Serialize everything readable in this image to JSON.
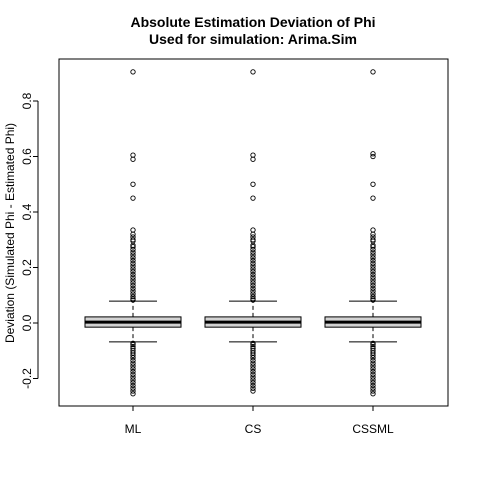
{
  "chart_data": {
    "type": "boxplot",
    "title": "Absolute Estimation Deviation of Phi",
    "subtitle": "Used for simulation: Arima.Sim",
    "xlabel": "",
    "ylabel": "Deviation (Simulated Phi - Estimated Phi)",
    "ylim": [
      -0.3,
      0.95
    ],
    "yticks": [
      -0.2,
      0.0,
      0.2,
      0.4,
      0.6,
      0.8
    ],
    "ytick_labels": [
      "-0.2",
      "0.0",
      "0.2",
      "0.4",
      "0.6",
      "0.8"
    ],
    "grid": false,
    "box_fill": "#d3d3d3",
    "categories": [
      "ML",
      "CS",
      "CSSML"
    ],
    "boxes": [
      {
        "name": "ML",
        "whisker_low": -0.068,
        "q1": -0.015,
        "median": 0.003,
        "q3": 0.022,
        "whisker_high": 0.079,
        "outliers_high": [
          0.905,
          0.605,
          0.59,
          0.5,
          0.45,
          0.335,
          0.32,
          0.31,
          0.3,
          0.295,
          0.28,
          0.275,
          0.265,
          0.255,
          0.245,
          0.235,
          0.225,
          0.215,
          0.205,
          0.195,
          0.185,
          0.175,
          0.165,
          0.155,
          0.145,
          0.135,
          0.125,
          0.115,
          0.105,
          0.095,
          0.088,
          0.083
        ],
        "outliers_low": [
          -0.073,
          -0.078,
          -0.085,
          -0.092,
          -0.1,
          -0.108,
          -0.116,
          -0.125,
          -0.135,
          -0.145,
          -0.155,
          -0.165,
          -0.175,
          -0.185,
          -0.195,
          -0.205,
          -0.215,
          -0.225,
          -0.235,
          -0.245,
          -0.255
        ]
      },
      {
        "name": "CS",
        "whisker_low": -0.068,
        "q1": -0.015,
        "median": 0.003,
        "q3": 0.022,
        "whisker_high": 0.079,
        "outliers_high": [
          0.905,
          0.605,
          0.59,
          0.5,
          0.45,
          0.335,
          0.32,
          0.31,
          0.3,
          0.295,
          0.28,
          0.275,
          0.265,
          0.255,
          0.245,
          0.235,
          0.225,
          0.215,
          0.205,
          0.195,
          0.185,
          0.175,
          0.165,
          0.155,
          0.145,
          0.135,
          0.125,
          0.115,
          0.105,
          0.095,
          0.088,
          0.083
        ],
        "outliers_low": [
          -0.073,
          -0.078,
          -0.085,
          -0.092,
          -0.1,
          -0.108,
          -0.116,
          -0.125,
          -0.135,
          -0.145,
          -0.155,
          -0.165,
          -0.175,
          -0.185,
          -0.195,
          -0.205,
          -0.215,
          -0.225,
          -0.235,
          -0.245
        ]
      },
      {
        "name": "CSSML",
        "whisker_low": -0.068,
        "q1": -0.015,
        "median": 0.003,
        "q3": 0.022,
        "whisker_high": 0.079,
        "outliers_high": [
          0.905,
          0.61,
          0.6,
          0.5,
          0.45,
          0.335,
          0.32,
          0.31,
          0.3,
          0.295,
          0.28,
          0.275,
          0.265,
          0.255,
          0.245,
          0.235,
          0.225,
          0.215,
          0.205,
          0.195,
          0.185,
          0.175,
          0.165,
          0.155,
          0.145,
          0.135,
          0.125,
          0.115,
          0.105,
          0.095,
          0.088,
          0.083
        ],
        "outliers_low": [
          -0.073,
          -0.078,
          -0.085,
          -0.092,
          -0.1,
          -0.108,
          -0.116,
          -0.125,
          -0.135,
          -0.145,
          -0.155,
          -0.165,
          -0.175,
          -0.185,
          -0.195,
          -0.205,
          -0.215,
          -0.225,
          -0.235,
          -0.245,
          -0.255
        ]
      }
    ]
  }
}
